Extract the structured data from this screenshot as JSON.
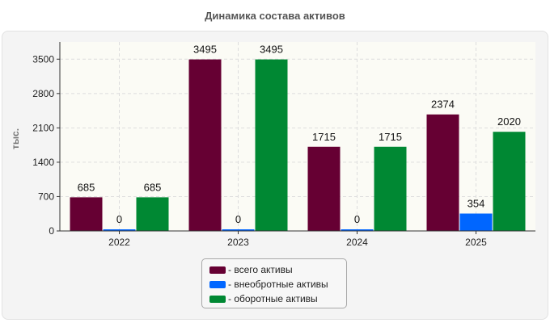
{
  "chart_data": {
    "type": "bar",
    "title": "Динамика состава активов",
    "xlabel": "",
    "ylabel": "тыс.",
    "categories": [
      "2022",
      "2023",
      "2024",
      "2025"
    ],
    "series": [
      {
        "name": "- всего активы",
        "color": "#660033",
        "values": [
          685,
          3495,
          1715,
          2374
        ]
      },
      {
        "name": "- внеобротные активы",
        "color": "#0066ff",
        "values": [
          0,
          0,
          0,
          354
        ]
      },
      {
        "name": "- оборотные активы",
        "color": "#008833",
        "values": [
          685,
          3495,
          1715,
          2020
        ]
      }
    ],
    "yticks": [
      0,
      700,
      1400,
      2100,
      2800,
      3500
    ],
    "ylim": [
      0,
      3850
    ],
    "grid": true,
    "legend_position": "bottom-center"
  }
}
